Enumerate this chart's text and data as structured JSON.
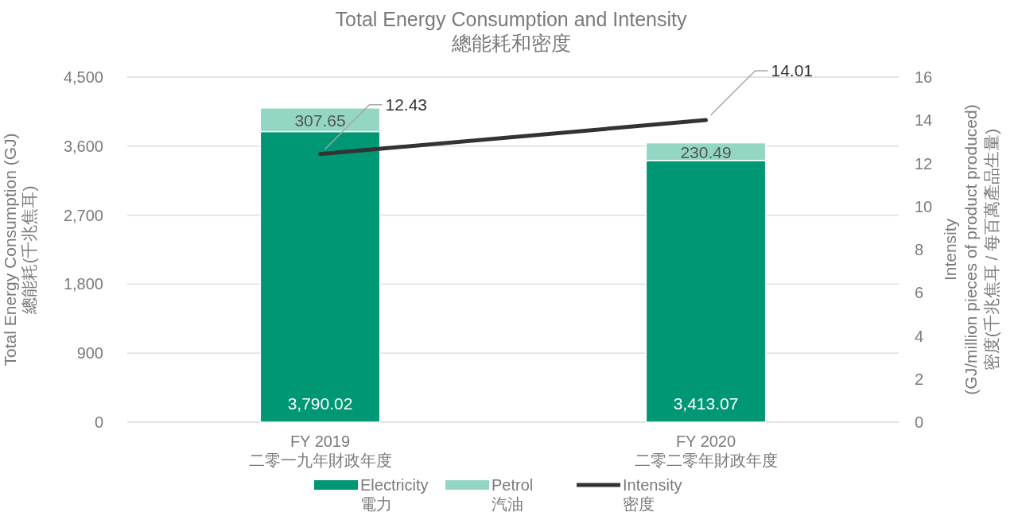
{
  "chart_data": {
    "type": "bar",
    "title": "Total Energy Consumption and Intensity\n總能耗和密度",
    "categories": [
      "FY 2019\n二零一九年財政年度",
      "FY 2020\n二零二零年財政年度"
    ],
    "ylabel": "Total Energy Consumption (GJ)\n總能耗(千兆焦耳)",
    "y2label": "Intensity\n(GJ/million pieces of product produced)\n密度(千兆焦耳 / 每百萬產品生量)",
    "stacked": true,
    "grid": "y",
    "legend": "bottom",
    "ylim": [
      0,
      4500
    ],
    "yticks": [
      0,
      900,
      {
        "value": 1800,
        "label": "1,800"
      },
      {
        "value": 2700,
        "label": "2,700"
      },
      {
        "value": 3600,
        "label": "3,600"
      },
      {
        "value": 4500,
        "label": "4,500"
      }
    ],
    "y2lim": [
      0,
      16
    ],
    "y2ticks": [
      0,
      2,
      4,
      6,
      8,
      10,
      12,
      14,
      16
    ],
    "series": [
      {
        "name": "Electricity\n電力",
        "color": "#009874",
        "values": [
          3790.02,
          3413.07
        ],
        "value_labels": [
          "3,790.02",
          "3,413.07"
        ]
      },
      {
        "name": "Petrol\n汽油",
        "color": "#93d6c4",
        "values": [
          307.65,
          230.49
        ],
        "value_labels": [
          "307.65",
          "230.49"
        ]
      },
      {
        "name": "Intensity\n密度",
        "type": "line",
        "axis": "y2",
        "color": "#333333",
        "values": [
          12.43,
          14.01
        ],
        "value_labels": [
          "12.43",
          "14.01"
        ]
      }
    ]
  }
}
